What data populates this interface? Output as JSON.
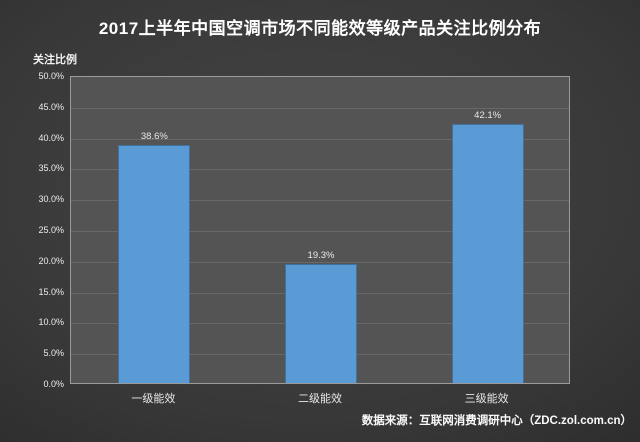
{
  "title": "2017上半年中国空调市场不同能效等级产品关注比例分布",
  "y_axis_title": "关注比例",
  "source": "数据来源：互联网消费调研中心（ZDC.zol.com.cn）",
  "colors": {
    "bar_fill": "#5b9bd5",
    "bar_border": "#41719c",
    "plot_background": "#545454",
    "plot_border": "#9b9b9b",
    "gridline": "#686868",
    "page_background_center": "#454545",
    "page_background_edge": "#262626",
    "text": "#ffffff"
  },
  "chart_data": {
    "type": "bar",
    "title": "2017上半年中国空调市场不同能效等级产品关注比例分布",
    "categories": [
      "一级能效",
      "二级能效",
      "三级能效"
    ],
    "values": [
      38.6,
      19.3,
      42.1
    ],
    "value_labels": [
      "38.6%",
      "19.3%",
      "42.1%"
    ],
    "xlabel": "",
    "ylabel": "关注比例",
    "ylim": [
      0,
      50
    ],
    "ytick_step": 5,
    "ytick_labels": [
      "0.0%",
      "5.0%",
      "10.0%",
      "15.0%",
      "20.0%",
      "25.0%",
      "30.0%",
      "35.0%",
      "40.0%",
      "45.0%",
      "50.0%"
    ],
    "grid": true,
    "legend": false,
    "bar_centers_pct": [
      16.67,
      50,
      83.33
    ]
  }
}
